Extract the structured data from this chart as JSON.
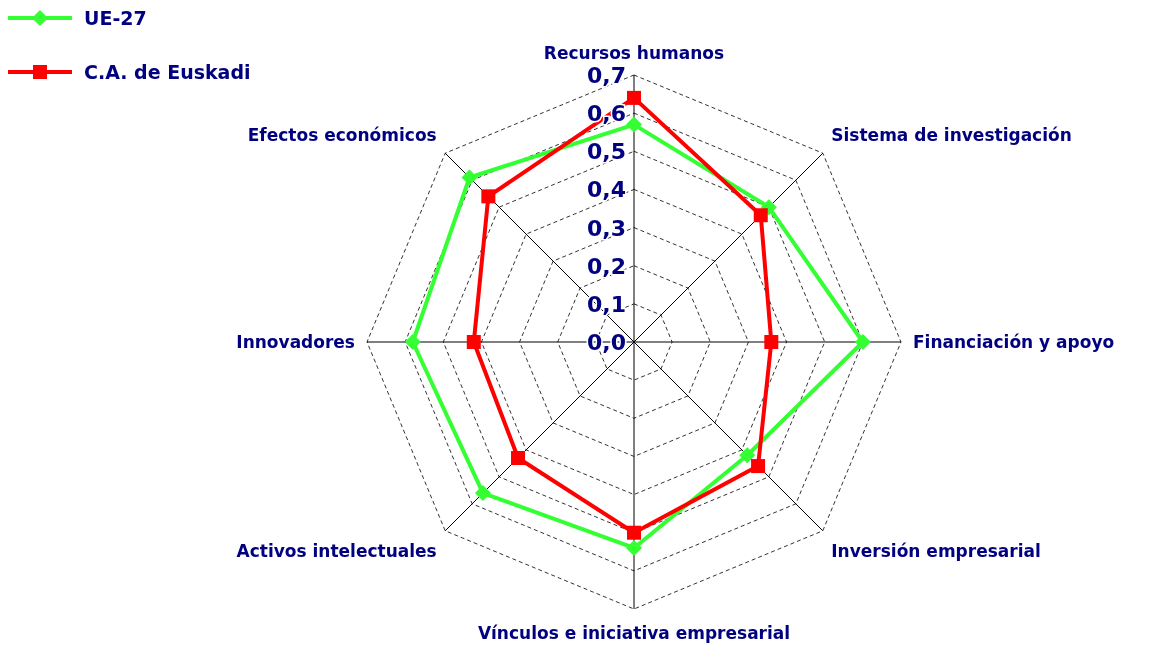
{
  "chart_data": {
    "type": "radar",
    "categories": [
      "Recursos humanos",
      "Sistema de investigación",
      "Financiación y apoyo",
      "Inversión empresarial",
      "Vínculos e iniciativa empresarial",
      "Activos intelectuales",
      "Innovadores",
      "Efectos económicos"
    ],
    "series": [
      {
        "name": "UE-27",
        "color": "#33ff33",
        "marker": "diamond",
        "values": [
          0.57,
          0.5,
          0.6,
          0.42,
          0.54,
          0.56,
          0.58,
          0.61
        ]
      },
      {
        "name": "C.A. de Euskadi",
        "color": "#ff0000",
        "marker": "square",
        "values": [
          0.64,
          0.47,
          0.36,
          0.46,
          0.5,
          0.43,
          0.42,
          0.54
        ]
      }
    ],
    "ylim": [
      0,
      0.7
    ],
    "yticks": [
      {
        "value": 0,
        "label": "0,0"
      },
      {
        "value": 0.1,
        "label": "0,1"
      },
      {
        "value": 0.2,
        "label": "0,2"
      },
      {
        "value": 0.3,
        "label": "0,3"
      },
      {
        "value": 0.4,
        "label": "0,4"
      },
      {
        "value": 0.5,
        "label": "0,5"
      },
      {
        "value": 0.6,
        "label": "0,6"
      },
      {
        "value": 0.7,
        "label": "0,7"
      }
    ],
    "grid": true,
    "legend": "top left"
  }
}
